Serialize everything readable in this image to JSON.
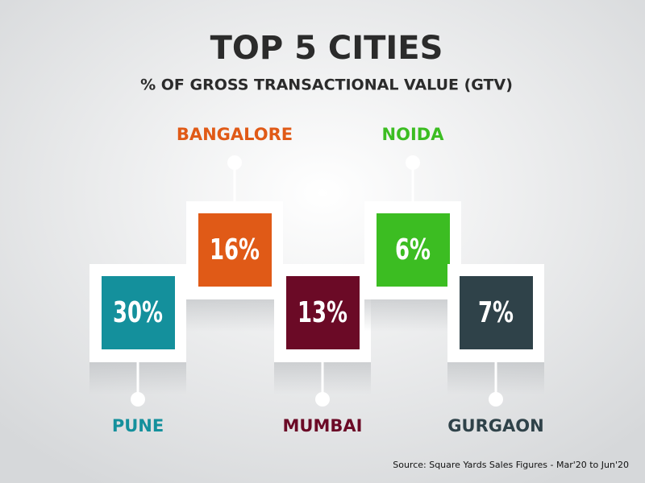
{
  "title": "TOP 5 CITIES",
  "subtitle": "% OF GROSS TRANSACTIONAL VALUE (GTV)",
  "cities": [
    {
      "name": "PUNE",
      "value_label": "30%",
      "color": "#14909c"
    },
    {
      "name": "BANGALORE",
      "value_label": "16%",
      "color": "#e05a17"
    },
    {
      "name": "MUMBAI",
      "value_label": "13%",
      "color": "#6b0a26"
    },
    {
      "name": "NOIDA",
      "value_label": "6%",
      "color": "#3cbd22"
    },
    {
      "name": "GURGAON",
      "value_label": "7%",
      "color": "#2f4249"
    }
  ],
  "source": "Source: Square Yards Sales Figures - Mar'20 to Jun'20"
}
